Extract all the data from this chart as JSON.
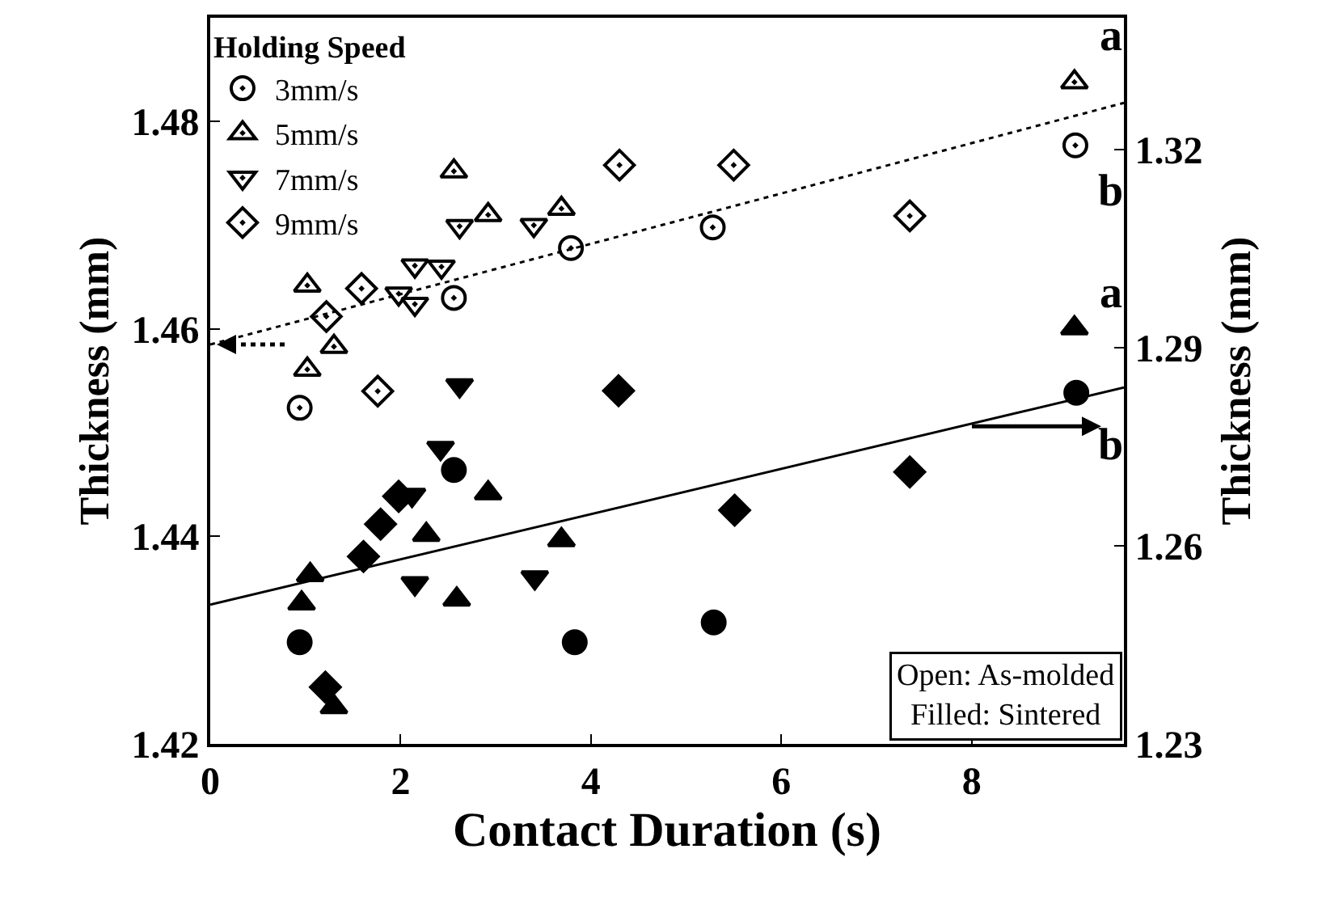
{
  "chart_data": {
    "type": "scatter",
    "xlabel": "Contact Duration (s)",
    "ylabel": "Thickness (mm)",
    "y2label": "Thickness (mm)",
    "legend_title": "Holding Speed",
    "xlim": [
      0,
      9.6
    ],
    "xticks": [
      0,
      2,
      4,
      6,
      8
    ],
    "ylim": [
      1.42,
      1.49
    ],
    "yticks": [
      1.42,
      1.44,
      1.46,
      1.48
    ],
    "y2lim": [
      1.23,
      1.34
    ],
    "y2ticks": [
      1.23,
      1.26,
      1.29,
      1.32
    ],
    "grid": false,
    "legend": "top left",
    "series": [
      {
        "name": "3mm/s",
        "color": "#000000",
        "marker": "circle",
        "x": [
          0.94,
          2.56,
          3.79,
          5.28,
          9.09
        ],
        "values": [
          1.4524,
          1.463,
          1.4678,
          1.4698,
          1.4777
        ]
      },
      {
        "name": "5mm/s",
        "color": "#000000",
        "marker": "triangle",
        "x": [
          1.02,
          1.3,
          1.02,
          2.56,
          2.92,
          3.69,
          9.08
        ],
        "values": [
          1.4561,
          1.4583,
          1.4642,
          1.4752,
          1.471,
          1.4716,
          1.4838
        ]
      },
      {
        "name": "7mm/s",
        "color": "#000000",
        "marker": "triangle-down",
        "x": [
          2.62,
          3.4,
          2.15,
          2.43,
          1.98,
          2.15
        ],
        "values": [
          1.4699,
          1.47,
          1.4661,
          1.466,
          1.4634,
          1.4624
        ]
      },
      {
        "name": "9mm/s",
        "color": "#000000",
        "marker": "diamond",
        "x": [
          1.22,
          1.59,
          1.76,
          4.3,
          5.5,
          7.35
        ],
        "values": [
          1.4612,
          1.4639,
          1.454,
          1.4758,
          1.4758,
          1.4709
        ]
      },
      {
        "color": "#000000",
        "marker": "circle",
        "axis": "y2",
        "x": [
          0.94,
          2.56,
          3.83,
          5.29,
          9.1
        ],
        "values": [
          1.2454,
          1.2715,
          1.2454,
          1.2484,
          1.2832
        ]
      },
      {
        "color": "#000000",
        "marker": "triangle",
        "axis": "y2",
        "x": [
          0.96,
          1.05,
          1.3,
          2.27,
          2.92,
          2.59,
          3.69,
          9.08
        ],
        "values": [
          1.2513,
          1.2556,
          1.2356,
          1.2617,
          1.268,
          1.2519,
          1.2609,
          1.293
        ]
      },
      {
        "color": "#000000",
        "marker": "triangle-down",
        "axis": "y2",
        "x": [
          2.62,
          2.42,
          2.12,
          2.15,
          3.41
        ],
        "values": [
          1.2843,
          1.2748,
          1.2677,
          1.2543,
          1.2552
        ]
      },
      {
        "color": "#000000",
        "marker": "diamond",
        "axis": "y2",
        "x": [
          4.29,
          5.51,
          7.35,
          1.21,
          1.61,
          1.79,
          1.98
        ],
        "values": [
          1.2835,
          1.2654,
          1.2712,
          1.2386,
          1.2584,
          1.2633,
          1.2675
        ]
      },
      {
        "type": "line",
        "color": "#000000",
        "marker": "none",
        "line_style": "dotted",
        "x": [
          0,
          9.6
        ],
        "values": [
          1.4585,
          1.4818
        ]
      },
      {
        "type": "line",
        "color": "#000000",
        "marker": "none",
        "line_style": "solid",
        "axis": "y2",
        "x": [
          0,
          9.6
        ],
        "values": [
          1.2511,
          1.284
        ]
      }
    ],
    "annotations": [
      "a",
      "b",
      "a",
      "b",
      "Open: As-molded\nFilled: Sintered"
    ]
  }
}
